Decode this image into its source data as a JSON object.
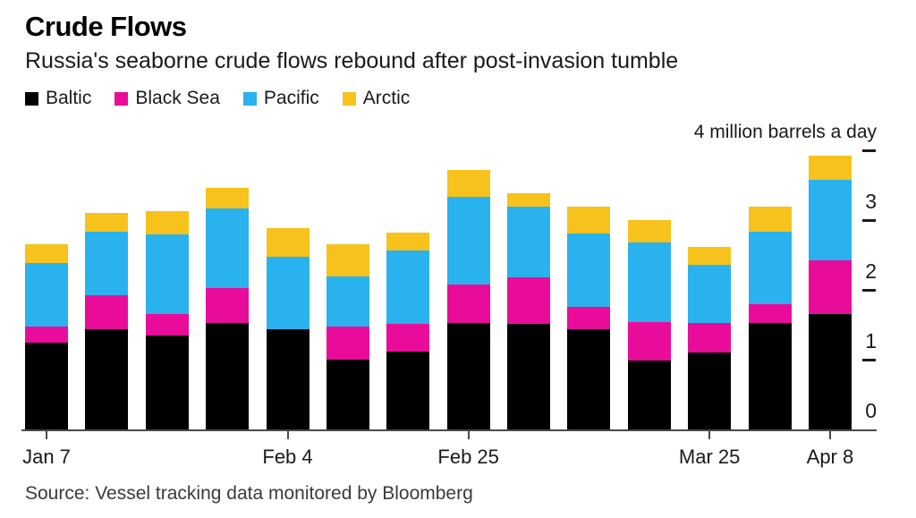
{
  "header": {
    "title": "Crude Flows",
    "subtitle": "Russia's seaborne crude flows rebound after post-invasion tumble"
  },
  "legend": {
    "items": [
      {
        "label": "Baltic",
        "color": "#000000"
      },
      {
        "label": "Black Sea",
        "color": "#e90c9a"
      },
      {
        "label": "Pacific",
        "color": "#2ab2ee"
      },
      {
        "label": "Arctic",
        "color": "#f8c21c"
      }
    ]
  },
  "chart_data": {
    "type": "bar",
    "stacked": true,
    "title": "Crude Flows",
    "subtitle": "Russia's seaborne crude flows rebound after post-invasion tumble",
    "unit": "million barrels a day",
    "y_axis_top_label": "4 million barrels a day",
    "ylim": [
      0,
      4
    ],
    "y_ticks": [
      0,
      1,
      2,
      3
    ],
    "y_tick_dashes": [
      1,
      2,
      3,
      4
    ],
    "categories": [
      "Jan 7",
      "",
      "",
      "",
      "Feb 4",
      "",
      "",
      "Feb 25",
      "",
      "",
      "",
      "Mar 25",
      "",
      "Apr 8"
    ],
    "x_axis_labels": [
      "Jan 7",
      "Feb 4",
      "Feb 25",
      "Mar 25",
      "Apr 8"
    ],
    "series": [
      {
        "name": "Baltic",
        "color": "#000000",
        "values": [
          1.25,
          1.43,
          1.34,
          1.53,
          1.44,
          1.0,
          1.11,
          1.53,
          1.51,
          1.44,
          0.99,
          1.1,
          1.53,
          1.66
        ]
      },
      {
        "name": "Black Sea",
        "color": "#e90c9a",
        "values": [
          0.23,
          0.49,
          0.31,
          0.5,
          0.0,
          0.48,
          0.4,
          0.55,
          0.67,
          0.32,
          0.55,
          0.42,
          0.26,
          0.76
        ]
      },
      {
        "name": "Pacific",
        "color": "#2ab2ee",
        "values": [
          0.9,
          0.91,
          1.15,
          1.14,
          1.03,
          0.71,
          1.06,
          1.26,
          1.01,
          1.05,
          1.14,
          0.84,
          1.05,
          1.16
        ]
      },
      {
        "name": "Arctic",
        "color": "#f8c21c",
        "values": [
          0.28,
          0.27,
          0.33,
          0.29,
          0.41,
          0.47,
          0.25,
          0.38,
          0.19,
          0.38,
          0.32,
          0.25,
          0.35,
          0.35
        ]
      }
    ],
    "totals": [
      2.66,
      3.1,
      3.13,
      3.46,
      2.88,
      2.66,
      2.82,
      3.72,
      3.38,
      3.19,
      3.0,
      2.61,
      3.19,
      3.93
    ]
  },
  "footer": {
    "source": "Source: Vessel tracking data monitored by Bloomberg"
  }
}
